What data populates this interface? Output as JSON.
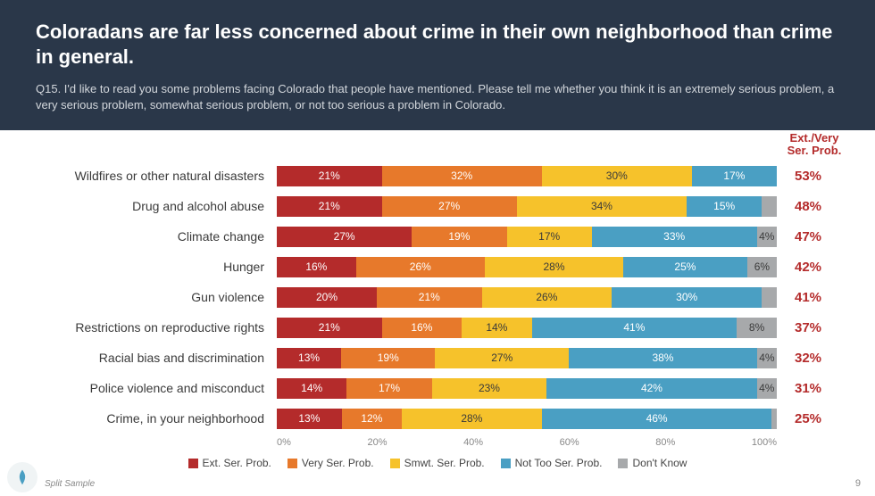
{
  "header": {
    "title": "Coloradans are far less concerned about crime in their own neighborhood than crime in general.",
    "subtitle": "Q15. I'd like to read you some problems facing Colorado that people have mentioned.  Please tell me whether you think it is an extremely serious problem, a very serious problem, somewhat serious problem, or not too serious a problem in Colorado."
  },
  "chart": {
    "type": "stacked-horizontal-bar",
    "summary_header": "Ext./Very Ser. Prob.",
    "colors": {
      "ext": "#b42b2b",
      "very": "#e7792b",
      "smwt": "#f6c22b",
      "nottoo": "#4a9fc3",
      "dk": "#a7a9ab",
      "summary_text": "#b42b2b",
      "header_bg": "#2a3749",
      "background": "#ffffff"
    },
    "axis": {
      "ticks": [
        "0%",
        "20%",
        "40%",
        "60%",
        "80%",
        "100%"
      ]
    },
    "legend": [
      {
        "key": "ext",
        "label": "Ext. Ser. Prob."
      },
      {
        "key": "very",
        "label": "Very Ser. Prob."
      },
      {
        "key": "smwt",
        "label": "Smwt. Ser. Prob."
      },
      {
        "key": "nottoo",
        "label": "Not Too Ser. Prob."
      },
      {
        "key": "dk",
        "label": "Don't Know"
      }
    ],
    "rows": [
      {
        "label": "Wildfires or other natural disasters",
        "ext": 21,
        "very": 32,
        "smwt": 30,
        "nottoo": 17,
        "dk": 0,
        "summary": "53%"
      },
      {
        "label": "Drug and alcohol abuse",
        "ext": 21,
        "very": 27,
        "smwt": 34,
        "nottoo": 15,
        "dk": 3,
        "summary": "48%"
      },
      {
        "label": "Climate change",
        "ext": 27,
        "very": 19,
        "smwt": 17,
        "nottoo": 33,
        "dk": 4,
        "summary": "47%"
      },
      {
        "label": "Hunger",
        "ext": 16,
        "very": 26,
        "smwt": 28,
        "nottoo": 25,
        "dk": 6,
        "summary": "42%"
      },
      {
        "label": "Gun violence",
        "ext": 20,
        "very": 21,
        "smwt": 26,
        "nottoo": 30,
        "dk": 3,
        "summary": "41%"
      },
      {
        "label": "Restrictions on reproductive rights",
        "ext": 21,
        "very": 16,
        "smwt": 14,
        "nottoo": 41,
        "dk": 8,
        "summary": "37%"
      },
      {
        "label": "Racial bias and discrimination",
        "ext": 13,
        "very": 19,
        "smwt": 27,
        "nottoo": 38,
        "dk": 4,
        "summary": "32%"
      },
      {
        "label": "Police violence and misconduct",
        "ext": 14,
        "very": 17,
        "smwt": 23,
        "nottoo": 42,
        "dk": 4,
        "summary": "31%"
      },
      {
        "label": "Crime, in your neighborhood",
        "ext": 13,
        "very": 12,
        "smwt": 28,
        "nottoo": 46,
        "dk": 1,
        "summary": "25%"
      }
    ],
    "show_label_threshold": 5,
    "dk_label_threshold": 4
  },
  "footer": {
    "note": "Split Sample",
    "page": "9"
  }
}
